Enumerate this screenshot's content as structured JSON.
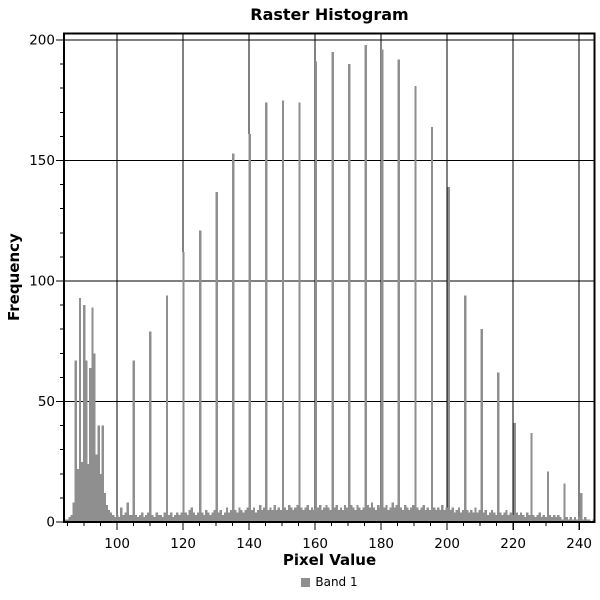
{
  "chart_data": {
    "type": "bar",
    "title": "Raster Histogram",
    "xlabel": "Pixel Value",
    "ylabel": "Frequency",
    "legend_position": "bottom-center",
    "grid": "major-both",
    "background": "#ffffff",
    "bar_color": "#8f8f8f",
    "axis_color": "#000000",
    "xlim": [
      83.9,
      244.65
    ],
    "ylim": [
      0,
      202.7
    ],
    "x_major_ticks": [
      100,
      120,
      140,
      160,
      180,
      200,
      220,
      240
    ],
    "x_minor_step": 5,
    "y_major_ticks": [
      0,
      50,
      100,
      150,
      200
    ],
    "y_minor_step": 10,
    "series": [
      {
        "name": "Band 1",
        "bin_start": 84.0,
        "bin_step": 0.6275,
        "frequencies": [
          1,
          1,
          2,
          3,
          8,
          67,
          22,
          93,
          25,
          90,
          67,
          24,
          64,
          89,
          70,
          28,
          40,
          20,
          40,
          12,
          7,
          5,
          4,
          3,
          2,
          3,
          2,
          6,
          3,
          4,
          8,
          3,
          3,
          67,
          3,
          2,
          3,
          4,
          2,
          3,
          4,
          79,
          3,
          2,
          4,
          3,
          3,
          2,
          4,
          94,
          3,
          4,
          2,
          3,
          4,
          3,
          4,
          112,
          4,
          3,
          5,
          6,
          4,
          3,
          4,
          121,
          4,
          3,
          5,
          4,
          3,
          4,
          5,
          137,
          4,
          5,
          3,
          4,
          6,
          4,
          5,
          153,
          5,
          4,
          6,
          5,
          4,
          5,
          6,
          161,
          5,
          6,
          4,
          5,
          7,
          5,
          6,
          174,
          5,
          6,
          5,
          7,
          5,
          6,
          5,
          175,
          6,
          5,
          7,
          6,
          5,
          6,
          7,
          174,
          6,
          5,
          6,
          7,
          5,
          6,
          5,
          191,
          6,
          7,
          5,
          6,
          7,
          6,
          5,
          195,
          6,
          7,
          5,
          6,
          5,
          7,
          6,
          190,
          7,
          6,
          5,
          7,
          6,
          5,
          6,
          198,
          7,
          6,
          8,
          6,
          5,
          7,
          6,
          196,
          6,
          7,
          5,
          6,
          8,
          6,
          7,
          192,
          6,
          5,
          7,
          6,
          5,
          6,
          7,
          181,
          6,
          5,
          6,
          7,
          5,
          6,
          5,
          164,
          6,
          5,
          6,
          5,
          7,
          5,
          6,
          139,
          5,
          6,
          4,
          5,
          6,
          4,
          5,
          94,
          5,
          4,
          5,
          4,
          6,
          4,
          5,
          80,
          4,
          5,
          3,
          4,
          5,
          4,
          3,
          62,
          4,
          3,
          4,
          5,
          3,
          4,
          3,
          41,
          4,
          3,
          4,
          3,
          2,
          4,
          3,
          37,
          3,
          2,
          3,
          4,
          2,
          3,
          2,
          21,
          3,
          2,
          3,
          2,
          3,
          2,
          1,
          16,
          2,
          1,
          2,
          1,
          2,
          1,
          2,
          12,
          1,
          2,
          1,
          1,
          0,
          1
        ]
      }
    ]
  }
}
